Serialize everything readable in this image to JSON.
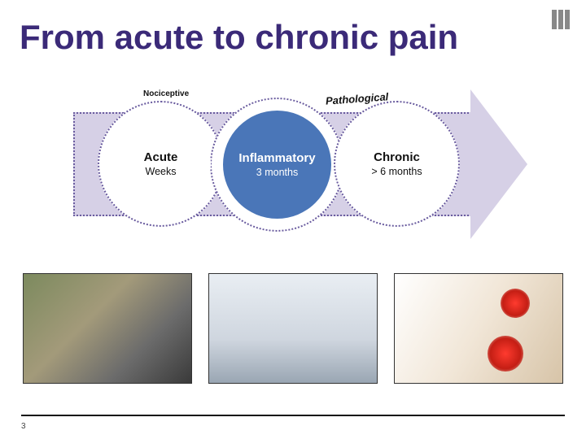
{
  "title": "From acute to chronic pain",
  "title_color": "#3b2a78",
  "logo_bars": 3,
  "logo_bar_color": "#888888",
  "categories": {
    "nociceptive": "Nociceptive",
    "pathological": "Pathological"
  },
  "arrow": {
    "fill": "#d6d0e6",
    "border": "#6a5c9f",
    "border_style": "dotted"
  },
  "stages": [
    {
      "name": "Acute",
      "duration": "Weeks",
      "fill": "#ffffff",
      "text": "#111111"
    },
    {
      "name": "Inflammatory",
      "duration": "3 months",
      "fill": "#4a76b8",
      "text": "#ffffff"
    },
    {
      "name": "Chronic",
      "duration": "> 6 months",
      "fill": "#ffffff",
      "text": "#111111"
    }
  ],
  "stage_outer_border": "#6a5c9f",
  "photos": [
    {
      "alt": "cycling-crash"
    },
    {
      "alt": "hospital-bed"
    },
    {
      "alt": "back-pain-highlights"
    }
  ],
  "pain_highlight_color": "#ff3b2f",
  "page_number": "3",
  "background_color": "#ffffff"
}
